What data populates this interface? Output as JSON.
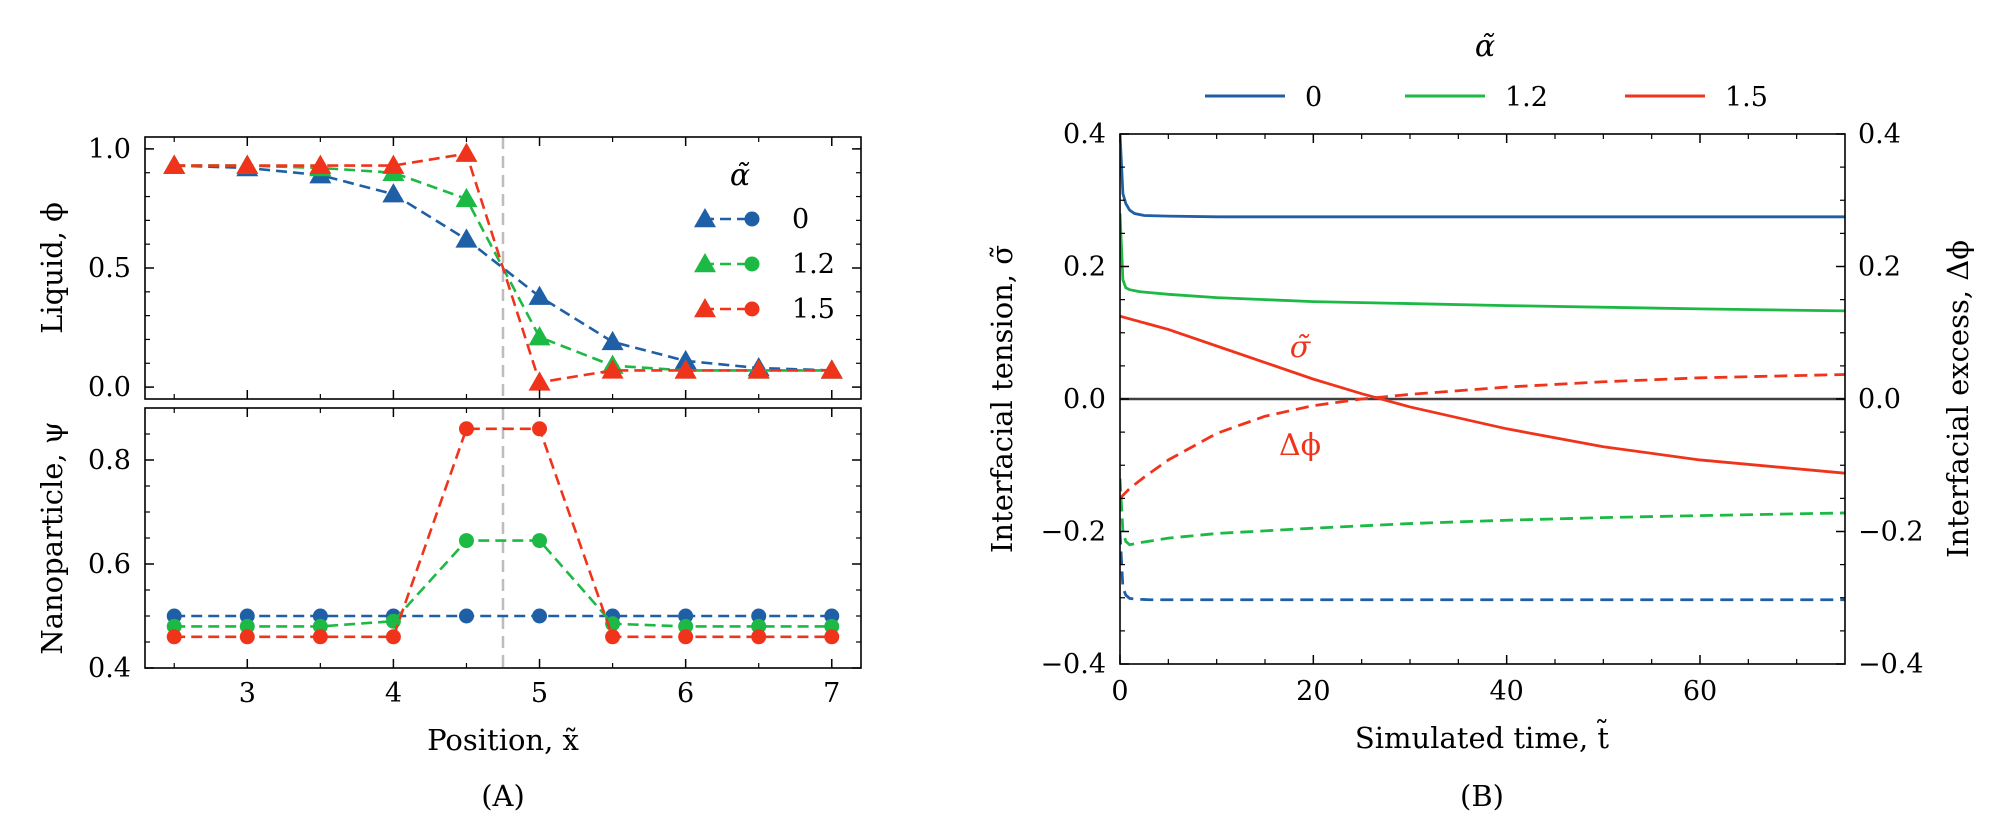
{
  "colors": {
    "alpha_0": "#1f5fa6",
    "alpha_1_2": "#1db945",
    "alpha_1_5": "#f0341c",
    "zero_line": "#404040",
    "marker_line": "#bdbdbd"
  },
  "chart_data": [
    {
      "type": "line",
      "panel": "(A) top",
      "caption": "(A)",
      "xlabel": "Position, x̃",
      "ylabel": "Liquid, ϕ",
      "xlim": [
        2.3,
        7.2
      ],
      "ylim": [
        -0.05,
        1.05
      ],
      "yticks": [
        "0.0",
        "0.5",
        "1.0"
      ],
      "vline_x": 4.75,
      "legend": {
        "title": "α̃",
        "location": "right"
      },
      "x": [
        2.5,
        3,
        3.5,
        4,
        4.5,
        5,
        5.5,
        6,
        6.5,
        7
      ],
      "series": [
        {
          "name": "0",
          "values": [
            0.93,
            0.92,
            0.89,
            0.81,
            0.62,
            0.38,
            0.19,
            0.11,
            0.08,
            0.07
          ]
        },
        {
          "name": "1.2",
          "values": [
            0.93,
            0.93,
            0.92,
            0.9,
            0.79,
            0.21,
            0.09,
            0.07,
            0.07,
            0.07
          ]
        },
        {
          "name": "1.5",
          "values": [
            0.93,
            0.93,
            0.93,
            0.93,
            0.98,
            0.02,
            0.07,
            0.07,
            0.07,
            0.07
          ]
        }
      ]
    },
    {
      "type": "line",
      "panel": "(A) bottom",
      "xlabel": "Position, x̃",
      "ylabel": "Nanoparticle, ψ",
      "xlim": [
        2.3,
        7.2
      ],
      "ylim": [
        0.4,
        0.9
      ],
      "xticks": [
        "3",
        "4",
        "5",
        "6",
        "7"
      ],
      "yticks": [
        "0.4",
        "0.6",
        "0.8"
      ],
      "vline_x": 4.75,
      "x": [
        2.5,
        3,
        3.5,
        4,
        4.5,
        5,
        5.5,
        6,
        6.5,
        7
      ],
      "series": [
        {
          "name": "0",
          "values": [
            0.5,
            0.5,
            0.5,
            0.5,
            0.5,
            0.5,
            0.5,
            0.5,
            0.5,
            0.5
          ]
        },
        {
          "name": "1.2",
          "values": [
            0.48,
            0.48,
            0.48,
            0.49,
            0.645,
            0.645,
            0.485,
            0.48,
            0.48,
            0.48
          ]
        },
        {
          "name": "1.5",
          "values": [
            0.46,
            0.46,
            0.46,
            0.46,
            0.86,
            0.86,
            0.46,
            0.46,
            0.46,
            0.46
          ]
        }
      ]
    },
    {
      "type": "line",
      "panel": "(B)",
      "caption": "(B)",
      "xlabel": "Simulated time, t̃",
      "ylabel_left": "Interfacial tension, σ̃",
      "ylabel_right": "Interfacial excess, Δϕ",
      "xlim": [
        0,
        75
      ],
      "ylim": [
        -0.4,
        0.4
      ],
      "xticks": [
        "0",
        "20",
        "40",
        "60"
      ],
      "yticks": [
        "−0.4",
        "−0.2",
        "0.0",
        "0.2",
        "0.4"
      ],
      "legend": {
        "title": "α̃",
        "location": "top",
        "entries": [
          "0",
          "1.2",
          "1.5"
        ]
      },
      "annotations": [
        "σ̃",
        "Δϕ"
      ],
      "series": [
        {
          "name": "0",
          "quantity": "tension",
          "x": [
            0,
            0.3,
            0.6,
            1,
            1.5,
            2.5,
            5,
            10,
            75
          ],
          "values": [
            0.4,
            0.31,
            0.295,
            0.285,
            0.28,
            0.277,
            0.276,
            0.275,
            0.275
          ]
        },
        {
          "name": "1.2",
          "quantity": "tension",
          "x": [
            0,
            0.3,
            0.6,
            1,
            2,
            5,
            10,
            20,
            40,
            60,
            75
          ],
          "values": [
            0.28,
            0.18,
            0.168,
            0.165,
            0.162,
            0.158,
            0.153,
            0.147,
            0.141,
            0.136,
            0.133
          ]
        },
        {
          "name": "1.5",
          "quantity": "tension",
          "x": [
            0,
            5,
            10,
            15,
            20,
            25,
            30,
            40,
            50,
            60,
            75
          ],
          "values": [
            0.125,
            0.105,
            0.08,
            0.055,
            0.03,
            0.008,
            -0.012,
            -0.045,
            -0.072,
            -0.092,
            -0.112
          ]
        },
        {
          "name": "0",
          "quantity": "excess",
          "x": [
            0,
            0.3,
            0.6,
            1,
            1.5,
            3,
            75
          ],
          "values": [
            -0.2,
            -0.285,
            -0.296,
            -0.301,
            -0.302,
            -0.303,
            -0.303
          ]
        },
        {
          "name": "1.2",
          "quantity": "excess",
          "x": [
            0,
            0.3,
            0.6,
            1,
            2,
            5,
            10,
            20,
            30,
            40,
            50,
            60,
            75
          ],
          "values": [
            -0.12,
            -0.2,
            -0.215,
            -0.22,
            -0.217,
            -0.21,
            -0.203,
            -0.195,
            -0.188,
            -0.183,
            -0.179,
            -0.176,
            -0.172
          ]
        },
        {
          "name": "1.5",
          "quantity": "excess",
          "x": [
            0,
            1,
            2.5,
            5,
            10,
            15,
            20,
            25,
            30,
            40,
            50,
            60,
            75
          ],
          "values": [
            -0.15,
            -0.135,
            -0.118,
            -0.092,
            -0.052,
            -0.026,
            -0.01,
            0.0,
            0.007,
            0.018,
            0.026,
            0.032,
            0.037
          ]
        }
      ]
    }
  ]
}
